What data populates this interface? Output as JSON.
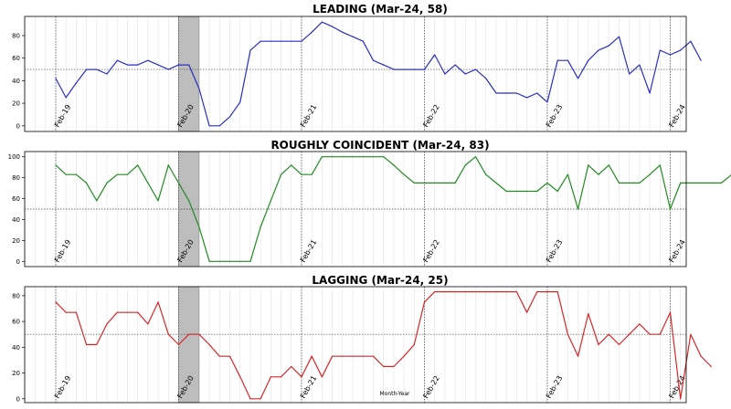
{
  "chart_data": [
    {
      "type": "line",
      "title": "LEADING (Mar-24, 58)",
      "color": "#2a2fc0",
      "ylim": [
        -5,
        97
      ],
      "yticks": [
        0,
        20,
        40,
        60,
        80
      ],
      "reference_line": 50,
      "grid": "vertical-monthly",
      "shaded_period": [
        "Feb-20",
        "Apr-20"
      ],
      "xticks": [
        "Feb-19",
        "Feb-20",
        "Feb-21",
        "Feb-22",
        "Feb-23",
        "Feb-24"
      ],
      "xlabel": "",
      "values": [
        42,
        25,
        38,
        50,
        50,
        46,
        58,
        54,
        54,
        58,
        54,
        50,
        54,
        54,
        33,
        0,
        0,
        8,
        21,
        67,
        75,
        75,
        75,
        75,
        75,
        83,
        92,
        88,
        83,
        79,
        75,
        58,
        54,
        50,
        50,
        50,
        50,
        63,
        46,
        54,
        46,
        50,
        42,
        29,
        29,
        29,
        25,
        29,
        21,
        58,
        58,
        42,
        58,
        67,
        71,
        79,
        46,
        54,
        29,
        67,
        63,
        67,
        75,
        58
      ]
    },
    {
      "type": "line",
      "title": "ROUGHLY COINCIDENT (Mar-24, 83)",
      "color": "#228b22",
      "ylim": [
        -5,
        105
      ],
      "yticks": [
        0,
        20,
        40,
        60,
        80,
        100
      ],
      "reference_line": 50,
      "grid": "vertical-monthly",
      "shaded_period": [
        "Feb-20",
        "Apr-20"
      ],
      "xticks": [
        "Feb-19",
        "Feb-20",
        "Feb-21",
        "Feb-22",
        "Feb-23",
        "Feb-24"
      ],
      "xlabel": "",
      "values": [
        92,
        83,
        83,
        75,
        58,
        75,
        83,
        83,
        92,
        75,
        58,
        92,
        75,
        58,
        33,
        0,
        0,
        0,
        0,
        0,
        33,
        58,
        83,
        92,
        83,
        83,
        100,
        100,
        100,
        100,
        100,
        100,
        100,
        92,
        83,
        75,
        75,
        75,
        75,
        75,
        92,
        100,
        83,
        75,
        67,
        67,
        67,
        67,
        75,
        67,
        83,
        50,
        92,
        83,
        92,
        75,
        75,
        75,
        83,
        92,
        50,
        75,
        75,
        75,
        75,
        75,
        83
      ]
    },
    {
      "type": "line",
      "title": "LAGGING (Mar-24, 25)",
      "color": "#d62728",
      "ylim": [
        -3,
        87
      ],
      "yticks": [
        0,
        20,
        40,
        60,
        80
      ],
      "reference_line": 50,
      "grid": "vertical-monthly",
      "shaded_period": [
        "Feb-20",
        "Apr-20"
      ],
      "xticks": [
        "Feb-19",
        "Feb-20",
        "Feb-21",
        "Feb-22",
        "Feb-23",
        "Feb-24"
      ],
      "xlabel": "Month-Year",
      "values": [
        75,
        67,
        67,
        42,
        42,
        58,
        67,
        67,
        67,
        58,
        75,
        50,
        42,
        50,
        50,
        42,
        33,
        33,
        17,
        0,
        0,
        17,
        17,
        25,
        17,
        33,
        17,
        33,
        33,
        33,
        33,
        33,
        25,
        25,
        33,
        42,
        75,
        83,
        83,
        83,
        83,
        83,
        83,
        83,
        83,
        83,
        67,
        83,
        83,
        83,
        50,
        33,
        66,
        42,
        50,
        42,
        50,
        58,
        50,
        50,
        67,
        0,
        50,
        33,
        25
      ]
    }
  ]
}
